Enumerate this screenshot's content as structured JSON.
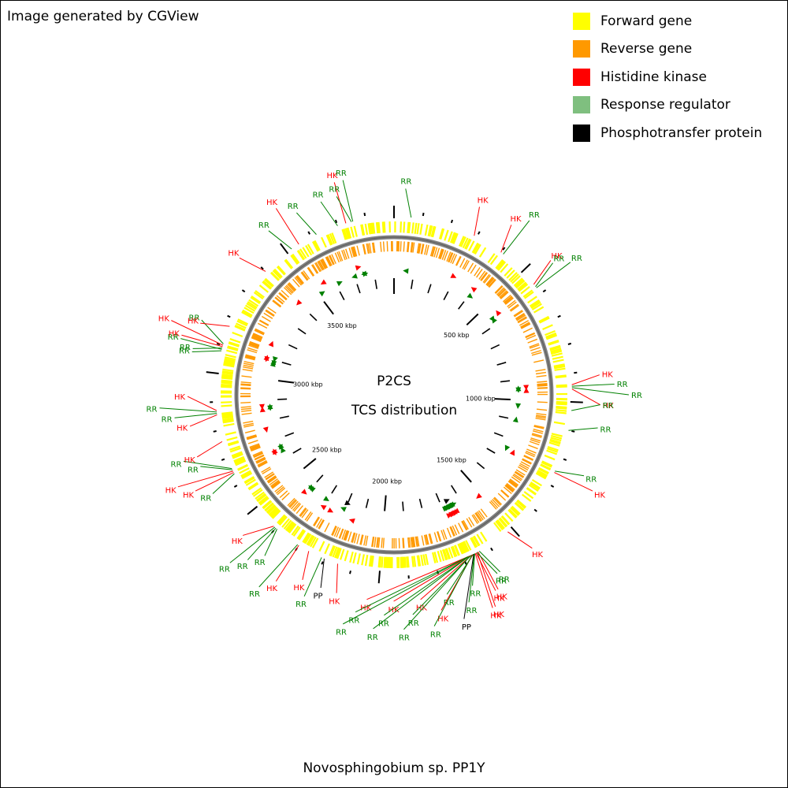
{
  "credit": "Image generated by CGView",
  "footer": "Novosphingobium sp. PP1Y",
  "center": {
    "line1": "P2CS",
    "line2": "TCS distribution"
  },
  "legend": [
    {
      "label": "Forward gene",
      "color": "#ffff00"
    },
    {
      "label": "Reverse gene",
      "color": "#ff9900"
    },
    {
      "label": "Histidine kinase",
      "color": "#ff0000"
    },
    {
      "label": "Response regulator",
      "color": "#7fbf7f"
    },
    {
      "label": "Phosphotransfer protein",
      "color": "#000000"
    }
  ],
  "colors": {
    "forward": "#ffff00",
    "reverse": "#ff9900",
    "hk": "#ff0000",
    "rr": "#008000",
    "pp": "#000000",
    "backbone": "#808080"
  },
  "chart_data": {
    "type": "circular-genome-map",
    "scale_labels": [
      {
        "label": "500 kbp",
        "kbp": 500
      },
      {
        "label": "1000 kbp",
        "kbp": 1000
      },
      {
        "label": "1500 kbp",
        "kbp": 1500
      },
      {
        "label": "2000 kbp",
        "kbp": 2000
      },
      {
        "label": "2500 kbp",
        "kbp": 2500
      },
      {
        "label": "3000 kbp",
        "kbp": 3000
      },
      {
        "label": "3500 kbp",
        "kbp": 3500
      }
    ],
    "features": [
      {
        "type": "RR",
        "kbp": 60
      },
      {
        "type": "HK",
        "kbp": 290
      },
      {
        "type": "HK",
        "kbp": 400
      },
      {
        "type": "RR",
        "kbp": 410
      },
      {
        "type": "HK",
        "kbp": 560
      },
      {
        "type": "RR",
        "kbp": 570
      },
      {
        "type": "RR",
        "kbp": 575
      },
      {
        "type": "HK",
        "kbp": 940
      },
      {
        "type": "RR",
        "kbp": 945
      },
      {
        "type": "RR",
        "kbp": 950
      },
      {
        "type": "HK",
        "kbp": 955
      },
      {
        "type": "RR",
        "kbp": 1030
      },
      {
        "type": "RR",
        "kbp": 1100
      },
      {
        "type": "RR",
        "kbp": 1250
      },
      {
        "type": "HK",
        "kbp": 1255
      },
      {
        "type": "HK",
        "kbp": 1520
      },
      {
        "type": "RR",
        "kbp": 1640
      },
      {
        "type": "HK",
        "kbp": 1645
      },
      {
        "type": "HK",
        "kbp": 1648
      },
      {
        "type": "RR",
        "kbp": 1650
      },
      {
        "type": "HK",
        "kbp": 1653
      },
      {
        "type": "HK",
        "kbp": 1656
      },
      {
        "type": "RR",
        "kbp": 1658
      },
      {
        "type": "RR",
        "kbp": 1660
      },
      {
        "type": "PP",
        "kbp": 1662
      },
      {
        "type": "RR",
        "kbp": 1664
      },
      {
        "type": "HK",
        "kbp": 1666
      },
      {
        "type": "RR",
        "kbp": 1668
      },
      {
        "type": "HK",
        "kbp": 1670
      },
      {
        "type": "RR",
        "kbp": 1672
      },
      {
        "type": "RR",
        "kbp": 1674
      },
      {
        "type": "HK",
        "kbp": 1676
      },
      {
        "type": "RR",
        "kbp": 1678
      },
      {
        "type": "RR",
        "kbp": 1680
      },
      {
        "type": "HK",
        "kbp": 1682
      },
      {
        "type": "RR",
        "kbp": 1684
      },
      {
        "type": "RR",
        "kbp": 1686
      },
      {
        "type": "HK",
        "kbp": 2150
      },
      {
        "type": "PP",
        "kbp": 2200
      },
      {
        "type": "RR",
        "kbp": 2210
      },
      {
        "type": "HK",
        "kbp": 2260
      },
      {
        "type": "HK",
        "kbp": 2300
      },
      {
        "type": "RR",
        "kbp": 2305
      },
      {
        "type": "RR",
        "kbp": 2395
      },
      {
        "type": "RR",
        "kbp": 2400
      },
      {
        "type": "RR",
        "kbp": 2405
      },
      {
        "type": "HK",
        "kbp": 2410
      },
      {
        "type": "RR",
        "kbp": 2640
      },
      {
        "type": "HK",
        "kbp": 2645
      },
      {
        "type": "HK",
        "kbp": 2650
      },
      {
        "type": "RR",
        "kbp": 2655
      },
      {
        "type": "RR",
        "kbp": 2660
      },
      {
        "type": "HK",
        "kbp": 2760
      },
      {
        "type": "HK",
        "kbp": 2855
      },
      {
        "type": "RR",
        "kbp": 2860
      },
      {
        "type": "RR",
        "kbp": 2865
      },
      {
        "type": "HK",
        "kbp": 2870
      },
      {
        "type": "RR",
        "kbp": 3080
      },
      {
        "type": "RR",
        "kbp": 3085
      },
      {
        "type": "RR",
        "kbp": 3090
      },
      {
        "type": "HK",
        "kbp": 3095
      },
      {
        "type": "HK",
        "kbp": 3100
      },
      {
        "type": "RR",
        "kbp": 3105
      },
      {
        "type": "HK",
        "kbp": 3170
      },
      {
        "type": "HK",
        "kbp": 3400
      },
      {
        "type": "RR",
        "kbp": 3520
      },
      {
        "type": "HK",
        "kbp": 3550
      },
      {
        "type": "RR",
        "kbp": 3620
      },
      {
        "type": "RR",
        "kbp": 3700
      },
      {
        "type": "HK",
        "kbp": 3730
      },
      {
        "type": "RR",
        "kbp": 3750
      },
      {
        "type": "RR",
        "kbp": 3755
      }
    ]
  }
}
